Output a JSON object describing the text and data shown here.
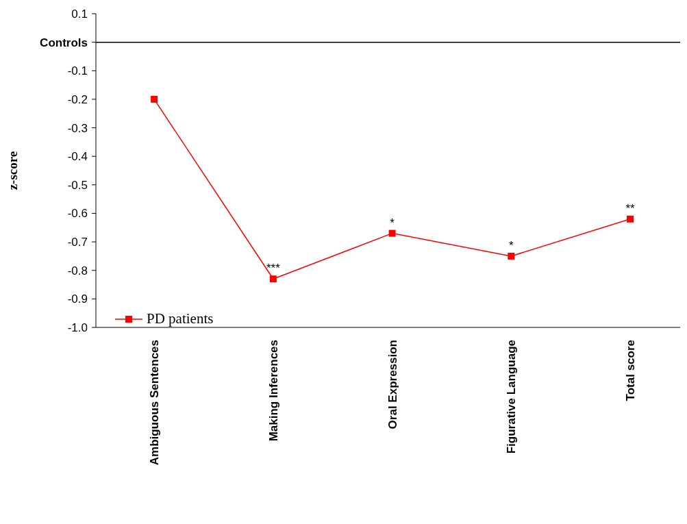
{
  "chart_data": {
    "type": "line",
    "ylabel": "z-score",
    "categories": [
      "Ambiguous Sentences",
      "Making Inferences",
      "Oral Expression",
      "Figurative Language",
      "Total score"
    ],
    "series": [
      {
        "name": "PD patients",
        "color": "#ff0000",
        "values": [
          -0.2,
          -0.83,
          -0.67,
          -0.75,
          -0.62
        ]
      }
    ],
    "ylim": [
      -1.0,
      0.1
    ],
    "yticks": [
      0.1,
      {
        "value": 0,
        "label": "Controls"
      },
      -0.1,
      -0.2,
      -0.3,
      -0.4,
      -0.5,
      -0.6,
      -0.7,
      -0.8,
      -0.9,
      {
        "value": -1,
        "label": "-1.0"
      }
    ],
    "ref_lines": [
      {
        "axis": "y",
        "value": 0,
        "label": null,
        "color": "#000000"
      }
    ],
    "annotations": [
      {
        "text": "***",
        "x": "Making Inferences",
        "y": -0.83
      },
      {
        "text": "*",
        "x": "Oral Expression",
        "y": -0.67
      },
      {
        "text": "*",
        "x": "Figurative Language",
        "y": -0.75
      },
      {
        "text": "**",
        "x": "Total score",
        "y": -0.62
      }
    ],
    "marker": "square",
    "line_style": "solid",
    "grid": false,
    "legend": "bottom left"
  }
}
